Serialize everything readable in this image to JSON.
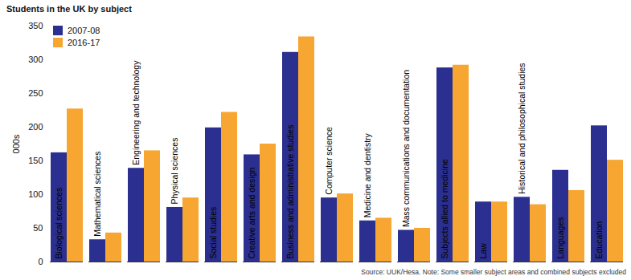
{
  "chart_data": {
    "type": "bar",
    "title": "Students in the UK by subject",
    "ylabel": "000s",
    "source": "Source: UUK/Hesa. Note: Some smaller subject areas and combined subjects excluded",
    "categories": [
      "Biological sciences",
      "Mathematical sciences",
      "Engineering and technology",
      "Physical sciences",
      "Social studies",
      "Creative arts and design",
      "Business and administrative studies",
      "Computer science",
      "Medicine and dentistry",
      "Mass communications and documentation",
      "Subjects allied to medicine",
      "Law",
      "Historical and philosophical studies",
      "Languages",
      "Education"
    ],
    "series": [
      {
        "name": "2007-08",
        "color": "#2b2f8f",
        "values": [
          162,
          33,
          139,
          81,
          199,
          159,
          311,
          95,
          61,
          47,
          288,
          89,
          96,
          136,
          202
        ]
      },
      {
        "name": "2016-17",
        "color": "#f7a631",
        "values": [
          227,
          43,
          165,
          95,
          222,
          175,
          334,
          101,
          65,
          50,
          292,
          89,
          85,
          106,
          151
        ]
      }
    ],
    "ylim": [
      0,
      350
    ],
    "yticks": [
      0,
      50,
      100,
      150,
      200,
      250,
      300,
      350
    ],
    "grid": false,
    "legend": "top-left",
    "tick_labels": "y"
  }
}
